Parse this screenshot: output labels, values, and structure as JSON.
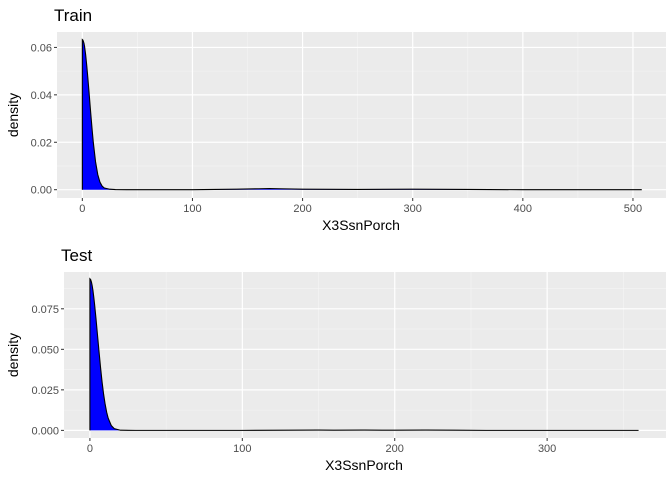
{
  "chart_data": [
    {
      "type": "area",
      "title": "Train",
      "xlabel": "X3SsnPorch",
      "ylabel": "density",
      "xlim": [
        -23,
        530
      ],
      "ylim": [
        -0.0035,
        0.0665
      ],
      "x_ticks": [
        0,
        100,
        200,
        300,
        400,
        500
      ],
      "x_tick_labels": [
        "0",
        "100",
        "200",
        "300",
        "400",
        "500"
      ],
      "y_ticks": [
        0.0,
        0.02,
        0.04,
        0.06
      ],
      "y_tick_labels": [
        "0.00",
        "0.02",
        "0.04",
        "0.06"
      ],
      "grid": true,
      "fill_color": "#0000FF",
      "line_color": "#000000",
      "panel_background": "#EBEBEB",
      "series": [
        {
          "x": [
            0,
            0.5,
            1,
            1.5,
            2,
            3,
            4,
            5,
            6,
            7,
            8,
            9,
            10,
            12,
            14,
            16,
            18,
            20,
            25,
            30,
            40,
            60,
            100,
            140,
            160,
            170,
            180,
            200,
            250,
            300,
            350,
            400,
            450,
            508
          ],
          "y": [
            0.0633,
            0.0631,
            0.0625,
            0.0617,
            0.0605,
            0.057,
            0.0524,
            0.0472,
            0.0416,
            0.0358,
            0.0302,
            0.0248,
            0.0198,
            0.0118,
            0.0064,
            0.0032,
            0.0015,
            0.0007,
            0.0002,
            5e-05,
            0.0,
            0.0,
            0.0,
            0.0002,
            0.0004,
            0.0005,
            0.0004,
            0.0002,
            0.0001,
            0.0002,
            0.0001,
            0.0,
            0.0,
            0.0
          ]
        }
      ]
    },
    {
      "type": "area",
      "title": "Test",
      "xlabel": "X3SsnPorch",
      "ylabel": "density",
      "xlim": [
        -17,
        378
      ],
      "ylim": [
        -0.0047,
        0.0977
      ],
      "x_ticks": [
        0,
        100,
        200,
        300
      ],
      "x_tick_labels": [
        "0",
        "100",
        "200",
        "300"
      ],
      "y_ticks": [
        0.0,
        0.025,
        0.05,
        0.075
      ],
      "y_tick_labels": [
        "0.000",
        "0.025",
        "0.050",
        "0.075"
      ],
      "grid": true,
      "fill_color": "#0000FF",
      "line_color": "#000000",
      "panel_background": "#EBEBEB",
      "series": [
        {
          "x": [
            0,
            0.5,
            1,
            1.5,
            2,
            2.5,
            3,
            4,
            5,
            6,
            7,
            8,
            9,
            10,
            11,
            12,
            14,
            16,
            20,
            30,
            60,
            100,
            130,
            150,
            160,
            180,
            200,
            220,
            240,
            260,
            300,
            330,
            360
          ],
          "y": [
            0.0935,
            0.093,
            0.0915,
            0.0892,
            0.0862,
            0.0825,
            0.0783,
            0.0688,
            0.0586,
            0.0484,
            0.0386,
            0.0297,
            0.0222,
            0.0161,
            0.0112,
            0.0075,
            0.003,
            0.0011,
            0.0001,
            0.0,
            0.0,
            0.0,
            0.0001,
            0.0002,
            0.0001,
            0.0002,
            0.0001,
            0.0002,
            0.0001,
            0.0,
            0.0,
            0.0,
            0.0
          ]
        }
      ]
    }
  ]
}
